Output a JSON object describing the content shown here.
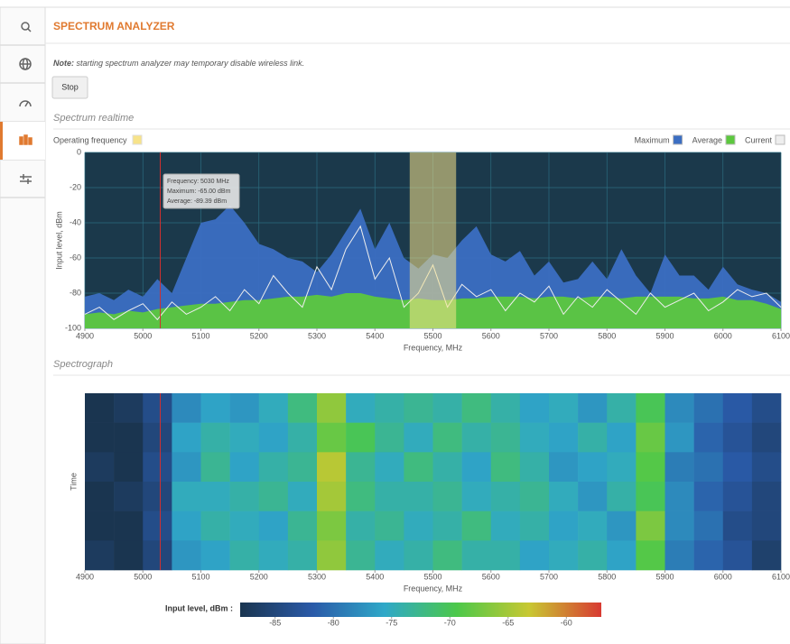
{
  "header": {
    "title": "SPECTRUM ANALYZER"
  },
  "note": {
    "label": "Note:",
    "text": "starting spectrum analyzer may temporary disable wireless link."
  },
  "button": "Stop",
  "sections": [
    "Spectrum realtime",
    "Spectrograph"
  ],
  "chart_data": [
    {
      "type": "area",
      "xlabel": "Frequency, MHz",
      "ylabel": "Input level, dBm",
      "xlim": [
        4900,
        6100
      ],
      "xticks": [
        4900,
        5000,
        5100,
        5200,
        5300,
        5400,
        5500,
        5600,
        5700,
        5800,
        5900,
        6000,
        6100
      ],
      "ylim": [
        -100,
        0
      ],
      "yticks": [
        0,
        -20,
        -40,
        -60,
        -80,
        -100
      ],
      "grid": true,
      "legend": "top-right",
      "band_label": "Operating frequency",
      "band": [
        5460,
        5540
      ],
      "band_color": "#f7e38a",
      "cursor": 5030,
      "tooltip": [
        "Frequency: 5030 MHz",
        "Maximum: -65.00 dBm",
        "Average: -89.39 dBm"
      ],
      "x": [
        4900,
        4925,
        4950,
        4975,
        5000,
        5025,
        5050,
        5075,
        5100,
        5125,
        5150,
        5175,
        5200,
        5225,
        5250,
        5275,
        5300,
        5325,
        5350,
        5375,
        5400,
        5425,
        5450,
        5475,
        5500,
        5525,
        5550,
        5575,
        5600,
        5625,
        5650,
        5675,
        5700,
        5725,
        5750,
        5775,
        5800,
        5825,
        5850,
        5875,
        5900,
        5925,
        5950,
        5975,
        6000,
        6025,
        6050,
        6075,
        6100
      ],
      "series": [
        {
          "name": "Maximum",
          "color": "#3b6ec2",
          "values": [
            -82,
            -80,
            -84,
            -78,
            -82,
            -72,
            -80,
            -60,
            -40,
            -38,
            -30,
            -40,
            -52,
            -55,
            -60,
            -62,
            -68,
            -58,
            -45,
            -32,
            -55,
            -40,
            -60,
            -66,
            -58,
            -60,
            -50,
            -42,
            -58,
            -62,
            -56,
            -70,
            -62,
            -74,
            -72,
            -62,
            -72,
            -55,
            -70,
            -80,
            -58,
            -70,
            -70,
            -78,
            -65,
            -75,
            -78,
            -80,
            -85
          ]
        },
        {
          "name": "Average",
          "color": "#5cc83e",
          "values": [
            -92,
            -91,
            -92,
            -90,
            -91,
            -89,
            -88,
            -87,
            -86,
            -86,
            -85,
            -84,
            -84,
            -83,
            -82,
            -82,
            -81,
            -82,
            -80,
            -80,
            -82,
            -83,
            -84,
            -83,
            -84,
            -84,
            -83,
            -83,
            -82,
            -82,
            -82,
            -83,
            -82,
            -82,
            -83,
            -82,
            -82,
            -83,
            -82,
            -82,
            -82,
            -82,
            -83,
            -83,
            -82,
            -84,
            -84,
            -86,
            -89
          ]
        },
        {
          "name": "Current",
          "color": "#eeeeee",
          "values": [
            -92,
            -88,
            -95,
            -90,
            -86,
            -95,
            -85,
            -92,
            -88,
            -82,
            -90,
            -78,
            -86,
            -70,
            -80,
            -88,
            -65,
            -78,
            -55,
            -42,
            -72,
            -60,
            -88,
            -80,
            -64,
            -88,
            -75,
            -82,
            -78,
            -90,
            -80,
            -85,
            -76,
            -92,
            -82,
            -88,
            -78,
            -85,
            -92,
            -80,
            -88,
            -84,
            -80,
            -90,
            -85,
            -78,
            -82,
            -80,
            -88
          ]
        }
      ]
    },
    {
      "type": "heatmap",
      "xlabel": "Frequency, MHz",
      "ylabel": "Time",
      "xlim": [
        4900,
        6100
      ],
      "xticks": [
        4900,
        5000,
        5100,
        5200,
        5300,
        5400,
        5500,
        5600,
        5700,
        5800,
        5900,
        6000,
        6100
      ],
      "x": [
        4925,
        4975,
        5025,
        5075,
        5125,
        5175,
        5225,
        5275,
        5325,
        5375,
        5425,
        5475,
        5525,
        5575,
        5625,
        5675,
        5725,
        5775,
        5825,
        5875,
        5925,
        5975,
        6025,
        6075
      ],
      "z": [
        [
          -88,
          -87,
          -84,
          -78,
          -76,
          -77,
          -75,
          -72,
          -66,
          -75,
          -74,
          -73,
          -74,
          -72,
          -74,
          -76,
          -75,
          -77,
          -74,
          -70,
          -78,
          -80,
          -82,
          -84
        ],
        [
          -88,
          -88,
          -85,
          -76,
          -74,
          -75,
          -76,
          -74,
          -68,
          -70,
          -73,
          -75,
          -72,
          -74,
          -73,
          -75,
          -76,
          -74,
          -76,
          -68,
          -77,
          -81,
          -83,
          -85
        ],
        [
          -87,
          -88,
          -84,
          -77,
          -73,
          -76,
          -74,
          -73,
          -64,
          -73,
          -75,
          -72,
          -74,
          -76,
          -72,
          -74,
          -77,
          -76,
          -75,
          -69,
          -79,
          -80,
          -82,
          -84
        ],
        [
          -88,
          -87,
          -85,
          -75,
          -75,
          -74,
          -73,
          -75,
          -65,
          -72,
          -74,
          -74,
          -73,
          -75,
          -74,
          -73,
          -75,
          -77,
          -74,
          -70,
          -78,
          -81,
          -83,
          -85
        ],
        [
          -88,
          -88,
          -84,
          -76,
          -74,
          -75,
          -76,
          -73,
          -67,
          -74,
          -73,
          -75,
          -74,
          -72,
          -75,
          -74,
          -76,
          -75,
          -77,
          -67,
          -78,
          -80,
          -84,
          -85
        ],
        [
          -87,
          -88,
          -85,
          -77,
          -76,
          -74,
          -75,
          -74,
          -66,
          -73,
          -75,
          -74,
          -72,
          -74,
          -74,
          -76,
          -75,
          -74,
          -76,
          -69,
          -79,
          -81,
          -83,
          -86
        ]
      ],
      "clabel": "Input level, dBm :",
      "clim": [
        -88,
        -57
      ],
      "cticks": [
        -85,
        -80,
        -75,
        -70,
        -65,
        -60
      ],
      "colorscale": [
        "#1a3550",
        "#2a5aa8",
        "#2fa8c8",
        "#4cc84a",
        "#c8c832",
        "#d83a32"
      ]
    }
  ]
}
